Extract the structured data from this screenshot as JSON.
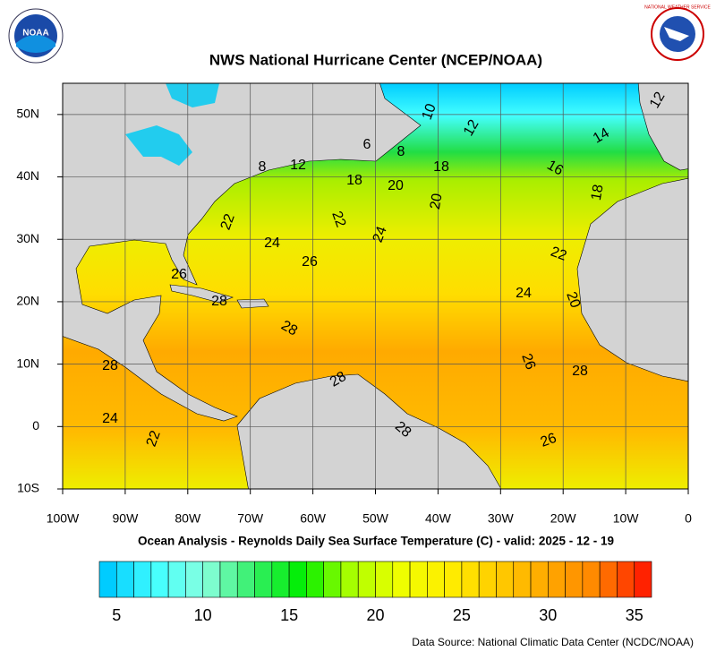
{
  "header": {
    "title": "NWS National Hurricane Center (NCEP/NOAA)",
    "logo_left": "NOAA",
    "logo_right": "NATIONAL WEATHER SERVICE"
  },
  "map": {
    "lon_range": [
      -100,
      0
    ],
    "lat_range": [
      -10,
      55
    ],
    "lon_ticks": [
      {
        "value": -100,
        "label": "100W"
      },
      {
        "value": -90,
        "label": "90W"
      },
      {
        "value": -80,
        "label": "80W"
      },
      {
        "value": -70,
        "label": "70W"
      },
      {
        "value": -60,
        "label": "60W"
      },
      {
        "value": -50,
        "label": "50W"
      },
      {
        "value": -40,
        "label": "40W"
      },
      {
        "value": -30,
        "label": "30W"
      },
      {
        "value": -20,
        "label": "20W"
      },
      {
        "value": -10,
        "label": "10W"
      },
      0
    ],
    "lat_ticks": [
      {
        "value": -10,
        "label": "10S"
      },
      0,
      {
        "value": 10,
        "label": "10N"
      },
      {
        "value": 20,
        "label": "20N"
      },
      {
        "value": 30,
        "label": "30N"
      },
      {
        "value": 40,
        "label": "40N"
      },
      {
        "value": 50,
        "label": "50N"
      }
    ],
    "contour_labels": [
      10,
      12,
      14,
      16,
      18,
      6,
      8,
      8,
      12,
      18,
      18,
      20,
      20,
      22,
      22,
      24,
      24,
      26,
      22,
      24,
      20,
      26,
      28,
      28,
      28,
      28,
      26,
      28,
      24,
      22,
      28,
      26,
      12
    ]
  },
  "subtitle": "Ocean Analysis - Reynolds Daily Sea Surface Temperature (C) - valid: 2025 - 12 - 19",
  "colorbar": {
    "range": [
      4,
      36
    ],
    "ticks": [
      5,
      10,
      15,
      20,
      25,
      30,
      35
    ],
    "colors": [
      "#00ccff",
      "#44ffff",
      "#88ffdd",
      "#33ee66",
      "#00ee00",
      "#aaff00",
      "#eeff00",
      "#ffee00",
      "#ffcc00",
      "#ffaa00",
      "#ff8800",
      "#ff2200"
    ]
  },
  "source": "Data Source: National Climatic Data Center (NCDC/NOAA)"
}
